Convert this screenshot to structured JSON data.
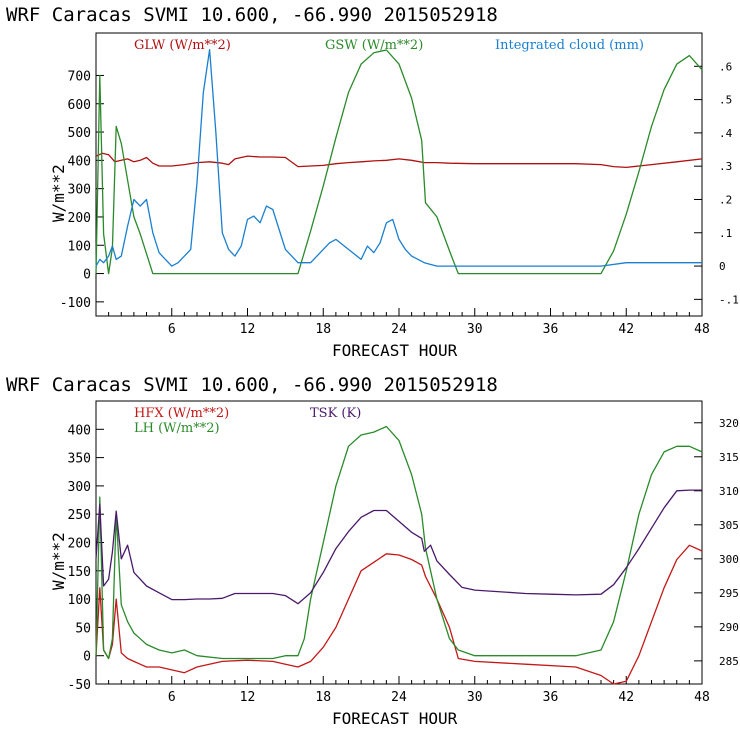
{
  "chart_data": [
    {
      "type": "line",
      "title": "WRF  Caracas SVMI  10.600, -66.990  2015052918",
      "xlabel": "FORECAST HOUR",
      "ylabel": "W/m**2",
      "xlim": [
        0,
        48
      ],
      "ylim": [
        -150,
        850
      ],
      "xticks": [
        6,
        12,
        18,
        24,
        30,
        36,
        42,
        48
      ],
      "yticks": [
        -100,
        0,
        100,
        200,
        300,
        400,
        500,
        600,
        700
      ],
      "y2lim": [
        -0.15,
        0.7
      ],
      "y2ticks": [
        -0.1,
        0,
        0.1,
        0.2,
        0.3,
        0.4,
        0.5,
        0.6
      ],
      "y2ticklabels": [
        "-.1",
        "0",
        ".1",
        ".2",
        ".3",
        ".4",
        ".5",
        ".6"
      ],
      "series": [
        {
          "name": "GLW (W/m**2)",
          "color": "#b01010",
          "axis": "left",
          "x": [
            0,
            0.5,
            1,
            1.5,
            2,
            2.5,
            3,
            3.5,
            4,
            4.5,
            5,
            6,
            7,
            8,
            9,
            10,
            10.5,
            11,
            12,
            13,
            14,
            15,
            16,
            17,
            18,
            19,
            20,
            21,
            22,
            23,
            24,
            25,
            26,
            27,
            28,
            30,
            32,
            34,
            36,
            38,
            40,
            41,
            42,
            43,
            44,
            46,
            48
          ],
          "y": [
            415,
            425,
            420,
            395,
            400,
            405,
            395,
            400,
            410,
            390,
            380,
            380,
            385,
            392,
            395,
            390,
            385,
            405,
            415,
            412,
            412,
            410,
            378,
            380,
            382,
            388,
            392,
            395,
            398,
            400,
            405,
            400,
            392,
            392,
            390,
            388,
            388,
            388,
            388,
            388,
            385,
            378,
            375,
            380,
            385,
            395,
            405
          ]
        },
        {
          "name": "GSW (W/m**2)",
          "color": "#2a8a2a",
          "axis": "left",
          "x": [
            0,
            0.3,
            0.6,
            1,
            1.3,
            1.6,
            2,
            2.5,
            3,
            3.5,
            4,
            4.5,
            5,
            6,
            8,
            10,
            12,
            14,
            16,
            17,
            18,
            19,
            20,
            21,
            22,
            23,
            24,
            25,
            25.8,
            26.1,
            27,
            28,
            28.7,
            30,
            34,
            38,
            40,
            41,
            42,
            43,
            44,
            45,
            46,
            47,
            48
          ],
          "y": [
            0,
            700,
            140,
            0,
            90,
            520,
            460,
            330,
            200,
            140,
            70,
            0,
            0,
            0,
            0,
            0,
            0,
            0,
            0,
            150,
            310,
            480,
            640,
            740,
            780,
            790,
            740,
            620,
            470,
            250,
            200,
            80,
            0,
            0,
            0,
            0,
            0,
            80,
            210,
            360,
            520,
            650,
            740,
            770,
            720
          ]
        },
        {
          "name": "Integrated cloud (mm)",
          "color": "#1a7fd0",
          "axis": "right",
          "x": [
            0,
            0.3,
            0.6,
            1,
            1.3,
            1.6,
            2,
            2.5,
            3,
            3.5,
            4,
            4.5,
            5,
            5.5,
            6,
            6.5,
            7,
            7.5,
            8,
            8.5,
            9,
            9.5,
            10,
            10.5,
            11,
            11.5,
            12,
            12.5,
            13,
            13.5,
            14,
            15,
            16,
            17,
            18,
            18.5,
            19,
            20,
            21,
            21.5,
            22,
            22.5,
            23,
            23.5,
            24,
            24.5,
            25,
            26,
            27,
            28,
            30,
            36,
            40,
            42,
            44,
            46,
            48
          ],
          "y": [
            0,
            0.02,
            0.01,
            0.03,
            0.06,
            0.02,
            0.03,
            0.12,
            0.2,
            0.18,
            0.2,
            0.1,
            0.04,
            0.02,
            0,
            0.01,
            0.03,
            0.05,
            0.25,
            0.52,
            0.65,
            0.4,
            0.1,
            0.05,
            0.03,
            0.06,
            0.14,
            0.15,
            0.13,
            0.18,
            0.17,
            0.05,
            0.01,
            0.01,
            0.05,
            0.07,
            0.08,
            0.05,
            0.02,
            0.06,
            0.04,
            0.07,
            0.13,
            0.14,
            0.08,
            0.05,
            0.03,
            0.01,
            0,
            0,
            0,
            0,
            0,
            0.01,
            0.01,
            0.01,
            0.01
          ]
        }
      ]
    },
    {
      "type": "line",
      "title": "WRF  Caracas SVMI  10.600, -66.990  2015052918",
      "xlabel": "FORECAST HOUR",
      "ylabel": "W/m**2",
      "xlim": [
        0,
        48
      ],
      "ylim": [
        -50,
        450
      ],
      "xticks": [
        6,
        12,
        18,
        24,
        30,
        36,
        42,
        48
      ],
      "yticks": [
        -50,
        0,
        50,
        100,
        150,
        200,
        250,
        300,
        350,
        400
      ],
      "y2lim": [
        281.6,
        323.2
      ],
      "y2ticks": [
        285,
        290,
        295,
        300,
        305,
        310,
        315,
        320
      ],
      "y2ticklabels": [
        "285",
        "290",
        "295",
        "300",
        "305",
        "310",
        "315",
        "320"
      ],
      "series": [
        {
          "name": "HFX (W/m**2)",
          "color": "#c41818",
          "axis": "left",
          "x": [
            0,
            0.3,
            0.6,
            1,
            1.3,
            1.6,
            2,
            2.5,
            3,
            3.5,
            4,
            5,
            6,
            7,
            8,
            10,
            12,
            14,
            15,
            16,
            17,
            18,
            19,
            20,
            21,
            22,
            23,
            24,
            25,
            25.8,
            26.1,
            27,
            28,
            28.7,
            30,
            34,
            38,
            40,
            41,
            42,
            43,
            44,
            45,
            46,
            47,
            48
          ],
          "y": [
            0,
            120,
            10,
            -5,
            20,
            100,
            5,
            -5,
            -10,
            -15,
            -20,
            -20,
            -25,
            -30,
            -20,
            -10,
            -8,
            -10,
            -15,
            -20,
            -10,
            15,
            50,
            100,
            150,
            165,
            180,
            178,
            170,
            160,
            140,
            100,
            50,
            -5,
            -10,
            -15,
            -20,
            -35,
            -50,
            -45,
            0,
            60,
            120,
            170,
            195,
            185
          ]
        },
        {
          "name": "LH (W/m**2)",
          "color": "#2a8a2a",
          "axis": "left",
          "x": [
            0,
            0.3,
            0.6,
            1,
            1.3,
            1.6,
            2,
            2.5,
            3,
            3.5,
            4,
            5,
            6,
            7,
            8,
            10,
            12,
            14,
            15,
            16,
            16.5,
            17,
            18,
            19,
            20,
            21,
            22,
            23,
            24,
            25,
            25.8,
            26.1,
            27,
            28,
            28.7,
            30,
            34,
            38,
            40,
            41,
            42,
            43,
            44,
            45,
            46,
            47,
            48
          ],
          "y": [
            0,
            280,
            10,
            -5,
            30,
            250,
            90,
            60,
            40,
            30,
            20,
            10,
            5,
            10,
            0,
            -5,
            -5,
            -5,
            0,
            0,
            30,
            100,
            200,
            300,
            370,
            390,
            395,
            405,
            380,
            320,
            250,
            190,
            100,
            30,
            10,
            0,
            0,
            0,
            10,
            60,
            150,
            250,
            320,
            360,
            370,
            370,
            360
          ]
        },
        {
          "name": "TSK (K)",
          "color": "#4a1a6a",
          "axis": "right",
          "x": [
            0,
            0.3,
            0.6,
            1,
            1.3,
            1.6,
            2,
            2.5,
            3,
            3.5,
            4,
            5,
            6,
            7,
            8,
            9,
            10,
            11,
            12,
            13,
            14,
            15,
            16,
            17,
            18,
            19,
            20,
            21,
            22,
            23,
            24,
            25,
            25.8,
            26,
            26.5,
            27,
            28,
            29,
            30,
            34,
            36,
            38,
            40,
            41,
            42,
            43,
            44,
            45,
            46,
            47,
            48
          ],
          "y": [
            300,
            308,
            296,
            297,
            301,
            307,
            300,
            302,
            298,
            297,
            296,
            295,
            294,
            294,
            294.1,
            294.1,
            294.2,
            294.9,
            294.9,
            294.9,
            294.9,
            294.6,
            293.4,
            295,
            298,
            301.5,
            304,
            306.1,
            307.1,
            307.1,
            305.5,
            303.9,
            303,
            301.1,
            302,
            299.7,
            297.7,
            295.8,
            295.4,
            294.9,
            294.8,
            294.7,
            294.8,
            296.2,
            298.7,
            301.5,
            304.5,
            307.5,
            310,
            310.1,
            310.1
          ]
        }
      ]
    }
  ]
}
